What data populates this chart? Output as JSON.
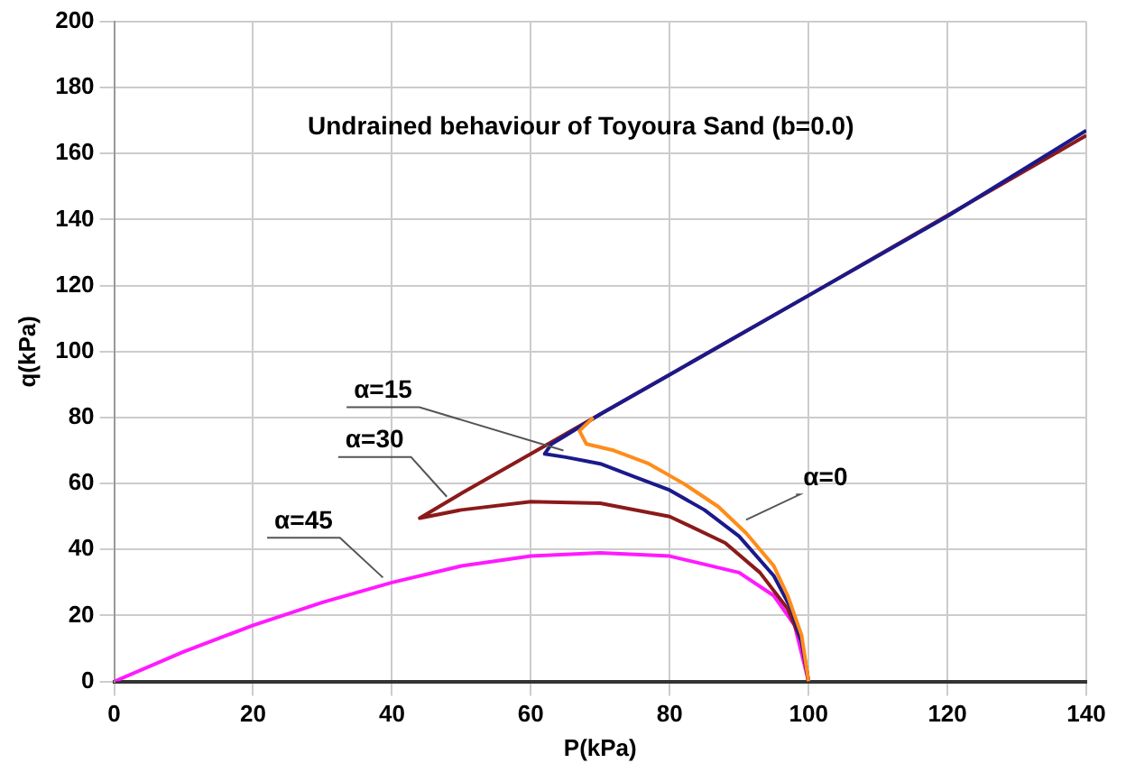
{
  "chart_data": {
    "type": "line",
    "title": "Undrained behaviour of Toyoura Sand (b=0.0)",
    "xlabel": "P(kPa)",
    "ylabel": "q(kPa)",
    "xlim": [
      0,
      140
    ],
    "xticks": [
      0,
      20,
      40,
      60,
      80,
      100,
      120,
      140
    ],
    "ylim": [
      0,
      200
    ],
    "yticks": [
      0,
      20,
      40,
      60,
      80,
      100,
      120,
      140,
      160,
      180,
      200
    ],
    "grid": true,
    "legend": false,
    "marker": "none",
    "line_style": "solid",
    "series": [
      {
        "color": "#ff8c1a",
        "x": [
          100,
          99,
          97,
          95,
          91,
          87,
          82,
          77,
          72,
          68,
          67,
          69
        ],
        "values": [
          0,
          14,
          26,
          35,
          45,
          53,
          60,
          66,
          70,
          72,
          76,
          80
        ]
      },
      {
        "color": "#1a1a8c",
        "x": [
          100,
          99,
          97.5,
          95,
          90,
          85,
          80,
          75,
          70,
          65,
          62,
          63,
          65,
          70,
          80,
          100,
          120,
          140
        ],
        "values": [
          0,
          12,
          22,
          32,
          44,
          52,
          58,
          62,
          66,
          68,
          69,
          72,
          74.5,
          81,
          93,
          117,
          141,
          167
        ]
      },
      {
        "color": "#8b1a1a",
        "x": [
          100,
          99,
          97,
          93,
          88,
          80,
          70,
          60,
          50,
          44,
          50,
          60,
          70,
          100,
          140
        ],
        "values": [
          0,
          12,
          22,
          33,
          42,
          50,
          54,
          54.5,
          52,
          49.5,
          57,
          69,
          81,
          117,
          165.5
        ]
      },
      {
        "color": "#ff1aff",
        "x": [
          0,
          10,
          20,
          30,
          40,
          50,
          60,
          70,
          80,
          90,
          95,
          98,
          100
        ],
        "values": [
          0,
          9,
          17,
          24,
          30,
          35,
          38,
          39,
          38,
          33,
          26,
          17,
          0
        ]
      }
    ],
    "annotations": [
      {
        "text": "α=15",
        "x": 64.7,
        "y": 70
      },
      {
        "text": "α=30",
        "x": 47.9,
        "y": 56
      },
      {
        "text": "α=45",
        "x": 38.7,
        "y": 31.5
      },
      {
        "text": "α=0",
        "x": 91,
        "y": 49
      }
    ]
  }
}
